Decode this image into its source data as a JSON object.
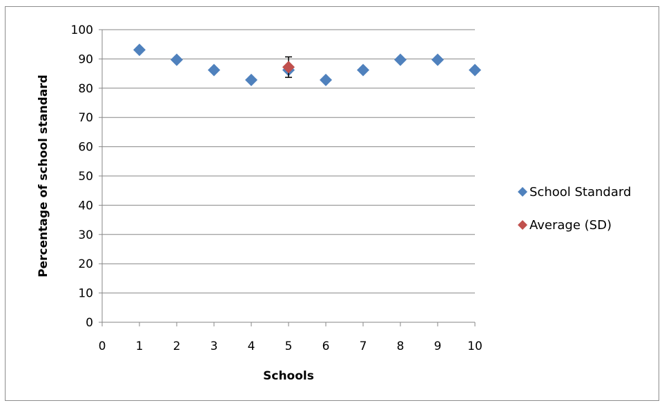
{
  "chart_data": {
    "type": "scatter",
    "title": "",
    "xlabel": "Schools",
    "ylabel": "Percentage of school standard",
    "xlim": [
      0,
      10
    ],
    "ylim": [
      0,
      100
    ],
    "x_ticks": [
      "0",
      "1",
      "2",
      "3",
      "4",
      "5",
      "6",
      "7",
      "8",
      "9",
      "10"
    ],
    "y_ticks": [
      "0",
      "10",
      "20",
      "30",
      "40",
      "50",
      "60",
      "70",
      "80",
      "90",
      "100"
    ],
    "grid": "horizontal",
    "legend_position": "right",
    "series": [
      {
        "name": "School Standard",
        "color": "#4f81bd",
        "marker": "diamond",
        "points": [
          {
            "x": 1,
            "y": 93.1
          },
          {
            "x": 2,
            "y": 89.7
          },
          {
            "x": 3,
            "y": 86.2
          },
          {
            "x": 4,
            "y": 82.8
          },
          {
            "x": 5,
            "y": 86.2
          },
          {
            "x": 6,
            "y": 82.8
          },
          {
            "x": 7,
            "y": 86.2
          },
          {
            "x": 8,
            "y": 89.7
          },
          {
            "x": 9,
            "y": 89.7
          },
          {
            "x": 10,
            "y": 86.2
          }
        ]
      },
      {
        "name": "Average (SD)",
        "color": "#c0504d",
        "marker": "diamond",
        "points": [
          {
            "x": 5,
            "y": 87.2,
            "error": 3.5
          }
        ]
      }
    ]
  }
}
